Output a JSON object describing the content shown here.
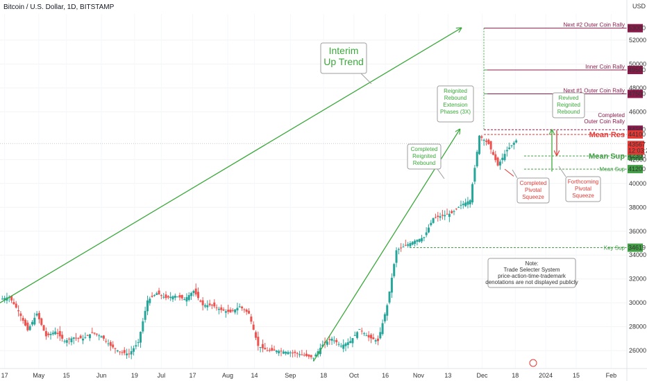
{
  "header": {
    "title": "Bitcoin / U.S. Dollar, 1D, BITSTAMP",
    "currency": "USD"
  },
  "colors": {
    "up": "#26a69a",
    "down": "#ef5350",
    "trend": "#3aa83a",
    "maroon": "#8b1a4a",
    "red": "#e53935",
    "green_label": "#43a047"
  },
  "chart_data": {
    "type": "candlestick",
    "title": "Bitcoin / U.S. Dollar, 1D, BITSTAMP",
    "ylim": [
      24500,
      54200
    ],
    "y_ticks": [
      26000,
      28000,
      30000,
      32000,
      34000,
      36000,
      38000,
      40000,
      42000,
      46000,
      48000,
      50000,
      52000
    ],
    "x_ticks": [
      "17",
      "May",
      "15",
      "Jun",
      "19",
      "Jul",
      "17",
      "Aug",
      "14",
      "Sep",
      "18",
      "Oct",
      "16",
      "Nov",
      "13",
      "Dec",
      "18",
      "2024",
      "15",
      "Feb"
    ],
    "x_tick_positions": [
      0.5,
      4.2,
      7.2,
      11.0,
      14.6,
      17.5,
      20.9,
      24.7,
      27.6,
      31.5,
      35.1,
      38.4,
      41.8,
      45.4,
      48.6,
      52.3,
      55.9,
      59.2,
      62.5,
      66.3
    ],
    "x_range": [
      0,
      68
    ],
    "price_levels": [
      {
        "label": "Next #2 Outer Coin Rally",
        "value": 53000,
        "color": "maroon"
      },
      {
        "label": "Inner Coin Rally",
        "value": 49500,
        "color": "maroon"
      },
      {
        "label": "Next #1 Outer Coin Rally",
        "value": 47500,
        "color": "maroon"
      },
      {
        "label": "Completed Outer Coin Rally",
        "value": 44500,
        "color": "maroon"
      },
      {
        "label": "Mean Res",
        "value": 44100,
        "color": "red"
      },
      {
        "label": "Mean Sup",
        "value": 42300,
        "color": "green"
      },
      {
        "label": "Mean Sup",
        "value": 41200,
        "color": "green"
      },
      {
        "label": "Key Sup",
        "value": 34619,
        "color": "green"
      }
    ],
    "current_price": {
      "price": "43567",
      "time": "12:03:24",
      "value": 43567
    },
    "weekly_closes": [
      [
        0,
        30300
      ],
      [
        1,
        30500
      ],
      [
        2,
        29300
      ],
      [
        3,
        27700
      ],
      [
        4,
        29100
      ],
      [
        5,
        27200
      ],
      [
        6,
        27600
      ],
      [
        7,
        26800
      ],
      [
        8,
        27100
      ],
      [
        9,
        27000
      ],
      [
        10,
        27500
      ],
      [
        11,
        27200
      ],
      [
        12,
        26400
      ],
      [
        13,
        25900
      ],
      [
        14,
        25700
      ],
      [
        15,
        26700
      ],
      [
        16,
        30200
      ],
      [
        17,
        30800
      ],
      [
        18,
        30400
      ],
      [
        19,
        30600
      ],
      [
        20,
        30300
      ],
      [
        21,
        31000
      ],
      [
        22,
        29800
      ],
      [
        23,
        29800
      ],
      [
        24,
        29400
      ],
      [
        25,
        29200
      ],
      [
        26,
        29700
      ],
      [
        27,
        29100
      ],
      [
        28,
        26400
      ],
      [
        29,
        26000
      ],
      [
        30,
        26000
      ],
      [
        31,
        25900
      ],
      [
        32,
        25800
      ],
      [
        33,
        25600
      ],
      [
        34,
        25400
      ],
      [
        35,
        26500
      ],
      [
        36,
        27000
      ],
      [
        37,
        26400
      ],
      [
        38,
        26800
      ],
      [
        39,
        27800
      ],
      [
        40,
        27100
      ],
      [
        41,
        26800
      ],
      [
        42,
        29800
      ],
      [
        43,
        34400
      ],
      [
        44,
        34800
      ],
      [
        45,
        35200
      ],
      [
        46,
        35500
      ],
      [
        47,
        37100
      ],
      [
        48,
        37300
      ],
      [
        49,
        37500
      ],
      [
        50,
        38200
      ],
      [
        51,
        38600
      ],
      [
        52,
        44000
      ],
      [
        53,
        43300
      ],
      [
        54,
        41500
      ],
      [
        55,
        42800
      ],
      [
        56,
        43600
      ]
    ],
    "trendlines": [
      {
        "name": "Interim Up Trend",
        "from": [
          0,
          30000
        ],
        "to": [
          50,
          53000
        ]
      },
      {
        "name": "Completed Reignited Rebound",
        "from": [
          34,
          25100
        ],
        "to": [
          50,
          44500
        ]
      }
    ]
  },
  "annotations": {
    "interim": "Interim\nUp Trend",
    "reignited_ext": "Reignited\nRebound\nExtension\nPhases (3X)",
    "completed_reignited": "Completed\nReignited\nRebound",
    "revived": "Revived\nReignited\nRebound",
    "completed_pivotal": "Completed\nPivotal\nSqueeze",
    "forthcoming_pivotal": "Forthcoming\nPivotal\nSqueeze",
    "note": "Note:\nTrade Selecter System\nprice-action-time-trademark\ndenotations are not displayed publicly"
  }
}
